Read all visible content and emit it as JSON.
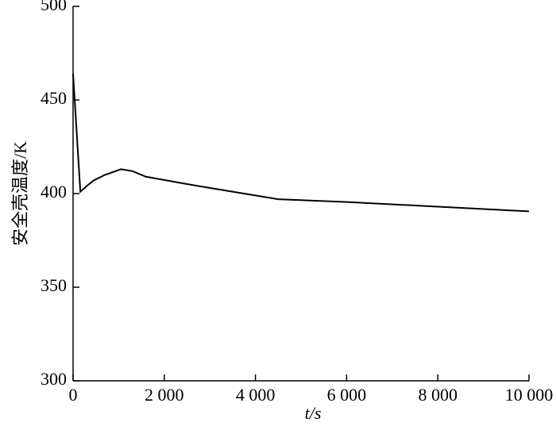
{
  "chart_data": {
    "type": "line",
    "xlabel": "t/s",
    "ylabel": "安全壳温度/K",
    "x": [
      0,
      160,
      300,
      450,
      700,
      1050,
      1300,
      1600,
      2400,
      3000,
      4500,
      6000,
      8000,
      10000
    ],
    "series": [
      {
        "color": "#000000",
        "values": [
          464,
          401,
          404,
          407,
          410,
          413,
          412,
          409,
          405.5,
          403,
          397,
          395.5,
          393,
          390.5
        ]
      }
    ],
    "xlim": [
      0,
      10000
    ],
    "xticks": [
      0,
      {
        "value": 2000,
        "label": "2 000"
      },
      {
        "value": 4000,
        "label": "4 000"
      },
      {
        "value": 6000,
        "label": "6 000"
      },
      {
        "value": 8000,
        "label": "8 000"
      },
      {
        "value": 10000,
        "label": "10 000"
      }
    ],
    "ylim": [
      300,
      500
    ],
    "yticks": [
      300,
      350,
      400,
      450,
      500
    ]
  }
}
